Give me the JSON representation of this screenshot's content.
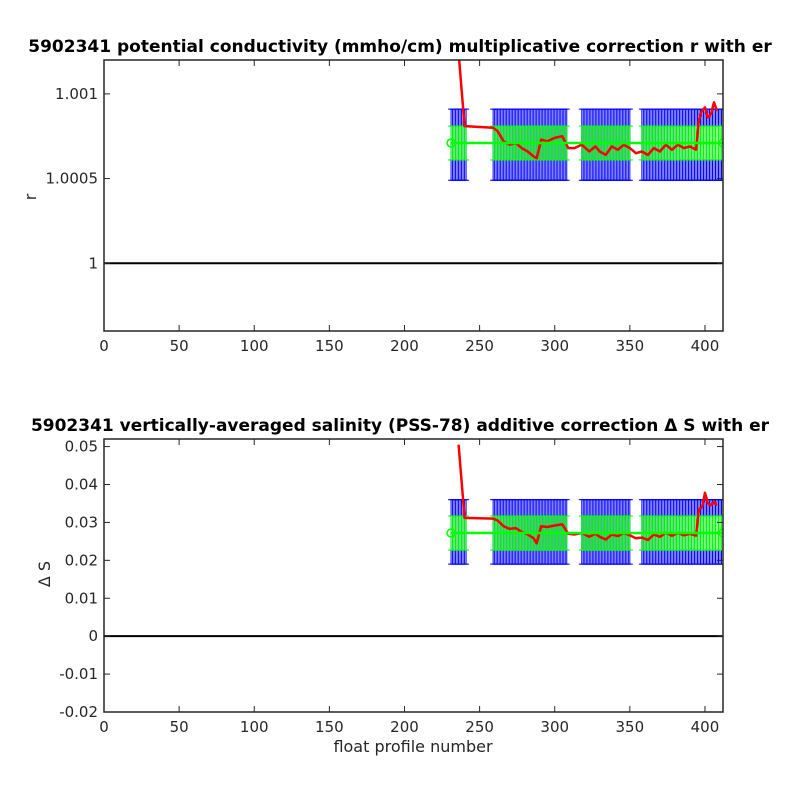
{
  "chart_data": [
    {
      "type": "line",
      "title": "5902341 potential conductivity (mmho/cm) multiplicative correction r with er",
      "xlabel": "",
      "ylabel": "r",
      "xlim": [
        0,
        412
      ],
      "ylim": [
        0.9996,
        1.0012
      ],
      "xticks": [
        "0",
        "50",
        "100",
        "150",
        "200",
        "250",
        "300",
        "350",
        "400"
      ],
      "yticks": [
        "1",
        "1.0005",
        "1.001"
      ],
      "ytick_values": [
        1.0,
        1.0005,
        1.001
      ],
      "reference_line": 1.0,
      "grid": false,
      "series": [
        {
          "kind": "correction",
          "color": "#ff0000",
          "x": [
            236,
            240,
            259,
            262,
            266,
            270,
            274,
            278,
            282,
            286,
            288,
            291,
            295,
            300,
            305,
            309,
            313,
            318,
            323,
            327,
            330,
            334,
            338,
            342,
            346,
            350,
            354,
            358,
            362,
            366,
            370,
            374,
            378,
            382,
            386,
            390,
            394,
            396,
            398,
            400,
            402,
            404,
            406,
            408
          ],
          "y": [
            1.00124,
            1.00081,
            1.0008,
            1.00078,
            1.00072,
            1.0007,
            1.00071,
            1.00068,
            1.00066,
            1.00063,
            1.00062,
            1.00073,
            1.00072,
            1.00074,
            1.00075,
            1.00068,
            1.00068,
            1.0007,
            1.00066,
            1.00069,
            1.00066,
            1.00064,
            1.00069,
            1.00067,
            1.0007,
            1.00068,
            1.00065,
            1.00066,
            1.00064,
            1.00068,
            1.00066,
            1.0007,
            1.00067,
            1.0007,
            1.00068,
            1.00069,
            1.00067,
            1.00085,
            1.0009,
            1.00092,
            1.00086,
            1.00088,
            1.00095,
            1.0009
          ]
        },
        {
          "kind": "fitted",
          "color": "#00ff00",
          "x": [
            231,
            412
          ],
          "y": [
            1.00071,
            1.00071
          ]
        }
      ],
      "error_bars": [
        {
          "color": "#0000ff",
          "center": 1.0007,
          "half_width": 0.00021,
          "segments": [
            [
              231,
              241
            ],
            [
              259,
              308
            ],
            [
              318,
              350
            ],
            [
              358,
              412
            ]
          ]
        },
        {
          "color": "#00ff00",
          "center": 1.00071,
          "half_width": 0.0001,
          "segments": [
            [
              231,
              241
            ],
            [
              259,
              308
            ],
            [
              318,
              350
            ],
            [
              358,
              412
            ]
          ]
        }
      ]
    },
    {
      "type": "line",
      "title": "5902341 vertically-averaged salinity (PSS-78) additive correction Δ S with er",
      "xlabel": "float profile number",
      "ylabel": "Δ S",
      "xlim": [
        0,
        412
      ],
      "ylim": [
        -0.02,
        0.052
      ],
      "xticks": [
        "0",
        "50",
        "100",
        "150",
        "200",
        "250",
        "300",
        "350",
        "400"
      ],
      "yticks": [
        "-0.02",
        "-0.01",
        "0",
        "0.01",
        "0.02",
        "0.03",
        "0.04",
        "0.05"
      ],
      "ytick_values": [
        -0.02,
        -0.01,
        0,
        0.01,
        0.02,
        0.03,
        0.04,
        0.05
      ],
      "reference_line": 0,
      "grid": false,
      "series": [
        {
          "kind": "correction",
          "color": "#ff0000",
          "x": [
            236,
            240,
            259,
            262,
            266,
            270,
            274,
            278,
            282,
            286,
            288,
            291,
            295,
            300,
            305,
            309,
            313,
            318,
            323,
            327,
            330,
            334,
            338,
            342,
            346,
            350,
            354,
            358,
            362,
            366,
            370,
            374,
            378,
            382,
            386,
            390,
            394,
            396,
            398,
            400,
            402,
            404,
            406,
            408
          ],
          "y": [
            0.0505,
            0.0312,
            0.031,
            0.0305,
            0.029,
            0.0283,
            0.0285,
            0.0275,
            0.0268,
            0.0258,
            0.0245,
            0.029,
            0.0288,
            0.0292,
            0.0295,
            0.027,
            0.0268,
            0.0272,
            0.0262,
            0.027,
            0.0262,
            0.0255,
            0.0268,
            0.0264,
            0.0272,
            0.0266,
            0.0258,
            0.026,
            0.0254,
            0.0268,
            0.0262,
            0.0273,
            0.0265,
            0.0272,
            0.0266,
            0.027,
            0.0265,
            0.0335,
            0.034,
            0.0378,
            0.035,
            0.0345,
            0.0355,
            0.0345
          ]
        },
        {
          "kind": "fitted",
          "color": "#00ff00",
          "x": [
            231,
            412
          ],
          "y": [
            0.0272,
            0.0272
          ]
        }
      ],
      "error_bars": [
        {
          "color": "#0000ff",
          "center": 0.0275,
          "half_width": 0.0085,
          "segments": [
            [
              231,
              241
            ],
            [
              259,
              308
            ],
            [
              318,
              350
            ],
            [
              358,
              412
            ]
          ]
        },
        {
          "color": "#00ff00",
          "center": 0.0272,
          "half_width": 0.0045,
          "segments": [
            [
              231,
              241
            ],
            [
              259,
              308
            ],
            [
              318,
              350
            ],
            [
              358,
              412
            ]
          ]
        }
      ]
    }
  ]
}
